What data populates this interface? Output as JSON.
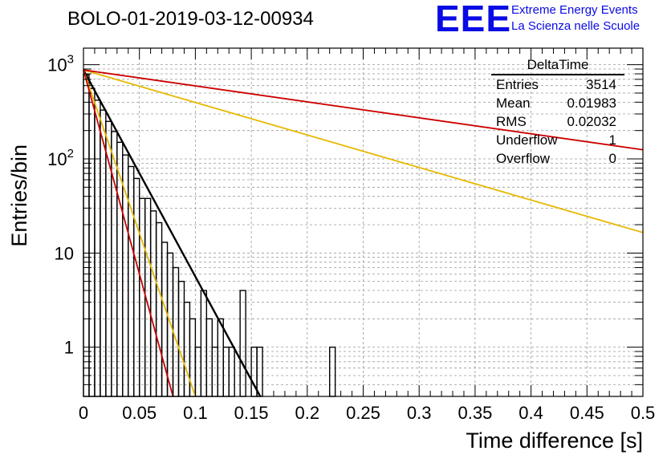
{
  "chart_data": {
    "type": "histogram",
    "title": "BOLO-01-2019-03-12-00934",
    "xlabel": "Time difference [s]",
    "ylabel": "Entries/bin",
    "xlim": [
      0,
      0.5
    ],
    "ylim": [
      0.3,
      1500
    ],
    "yscale": "log",
    "grid": true,
    "x_ticks": [
      "0",
      "0.05",
      "0.1",
      "0.15",
      "0.2",
      "0.25",
      "0.3",
      "0.35",
      "0.4",
      "0.45",
      "0.5"
    ],
    "x_tick_values": [
      0,
      0.05,
      0.1,
      0.15,
      0.2,
      0.25,
      0.3,
      0.35,
      0.4,
      0.45,
      0.5
    ],
    "y_ticks": [
      {
        "value": 1,
        "base": "1",
        "exp": ""
      },
      {
        "value": 10,
        "base": "10",
        "exp": ""
      },
      {
        "value": 100,
        "base": "10",
        "exp": "2"
      },
      {
        "value": 1000,
        "base": "10",
        "exp": "3"
      }
    ],
    "histogram": {
      "name": "DeltaTime",
      "bin_width": 0.005,
      "x_start": 0,
      "counts": [
        780,
        560,
        420,
        330,
        250,
        195,
        150,
        110,
        83,
        62,
        38,
        38,
        28,
        21,
        13,
        10,
        7,
        5,
        3,
        2,
        1,
        4,
        2,
        1,
        2,
        1,
        1,
        0,
        4,
        0,
        1,
        1,
        0,
        0,
        0,
        0,
        0,
        0,
        0,
        0,
        0,
        0,
        0,
        0,
        1
      ]
    },
    "fits": [
      {
        "color": "#000000",
        "x": [
          0.0,
          0.158
        ],
        "y": [
          880,
          0.3
        ]
      },
      {
        "color": "#e6b800",
        "x": [
          0.0,
          0.1
        ],
        "y": [
          880,
          0.3
        ]
      },
      {
        "color": "#cc0000",
        "x": [
          0.0,
          0.08
        ],
        "y": [
          880,
          0.3
        ]
      },
      {
        "color": "#e6b800",
        "x": [
          0.0,
          0.5
        ],
        "y": [
          880,
          16.5
        ]
      },
      {
        "color": "#cc0000",
        "x": [
          0.0,
          0.5
        ],
        "y": [
          880,
          125
        ]
      }
    ],
    "stats": {
      "title": "DeltaTime",
      "rows": [
        {
          "label": "Entries",
          "value": "3514"
        },
        {
          "label": "Mean",
          "value": "0.01983"
        },
        {
          "label": "RMS",
          "value": "0.02032"
        },
        {
          "label": "Underflow",
          "value": "1"
        },
        {
          "label": "Overflow",
          "value": "0"
        }
      ]
    }
  },
  "logo": {
    "letters": "EEE",
    "line1": "Extreme Energy Events",
    "line2": "La Scienza nelle Scuole",
    "color": "#0a0ae6"
  }
}
